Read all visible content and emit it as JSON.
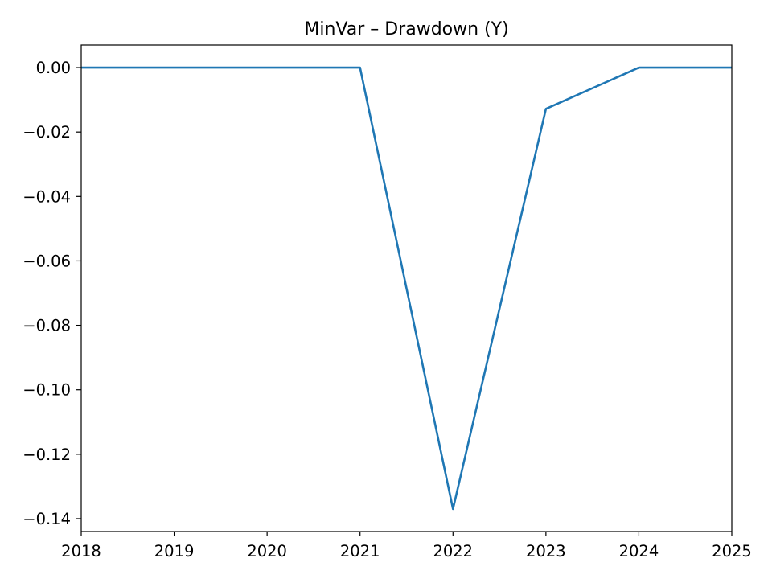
{
  "chart_data": {
    "type": "line",
    "title": "MinVar – Drawdown (Y)",
    "xlabel": "",
    "ylabel": "",
    "x": [
      "2018",
      "2019",
      "2020",
      "2021",
      "2022",
      "2023",
      "2024",
      "2025"
    ],
    "series": [
      {
        "values": [
          0.0,
          0.0,
          0.0,
          0.0,
          -0.137,
          -0.0128,
          0.0,
          0.0
        ],
        "color": "#1f77b4"
      }
    ],
    "xlim": [
      "2018",
      "2025"
    ],
    "ylim": [
      -0.144,
      0.007
    ],
    "xticks": [
      "2018",
      "2019",
      "2020",
      "2021",
      "2022",
      "2023",
      "2024",
      "2025"
    ],
    "yticks": [
      0.0,
      -0.02,
      -0.04,
      -0.06,
      -0.08,
      -0.1,
      -0.12,
      -0.14
    ],
    "ytick_labels": [
      "0.00",
      "−0.02",
      "−0.04",
      "−0.06",
      "−0.08",
      "−0.10",
      "−0.12",
      "−0.14"
    ],
    "grid": false,
    "legend": "none"
  }
}
